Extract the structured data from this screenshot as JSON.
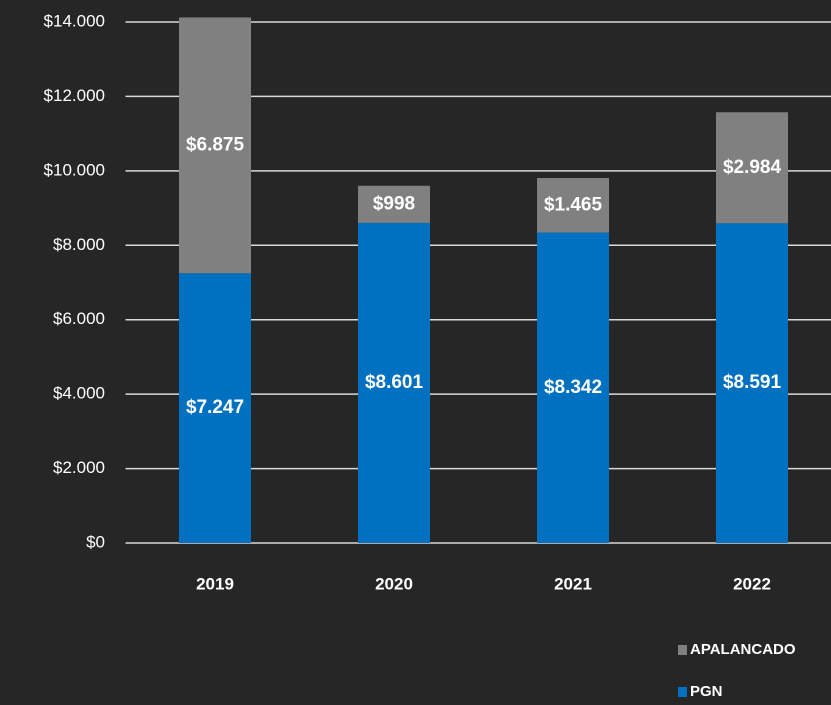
{
  "chart_data": {
    "type": "stacked_bar",
    "categories": [
      "2019",
      "2020",
      "2021",
      "2022"
    ],
    "series": [
      {
        "name": "PGN",
        "color": "#0070c0",
        "values": [
          7247,
          8601,
          8342,
          8591
        ],
        "value_labels": [
          "$7.247",
          "$8.601",
          "$8.342",
          "$8.591"
        ]
      },
      {
        "name": "APALANCADO",
        "color": "#808080",
        "values": [
          6875,
          998,
          1465,
          2984
        ],
        "value_labels": [
          "$6.875",
          "$998",
          "$1.465",
          "$2.984"
        ]
      }
    ],
    "ylim": [
      0,
      14000
    ],
    "yticks": [
      {
        "value": 0,
        "label": "$0"
      },
      {
        "value": 2000,
        "label": "$2.000"
      },
      {
        "value": 4000,
        "label": "$4.000"
      },
      {
        "value": 6000,
        "label": "$6.000"
      },
      {
        "value": 8000,
        "label": "$8.000"
      },
      {
        "value": 10000,
        "label": "$10.000"
      },
      {
        "value": 12000,
        "label": "$12.000"
      },
      {
        "value": 14000,
        "label": "$14.000"
      }
    ],
    "grid": true,
    "legend": "bottom-right"
  }
}
